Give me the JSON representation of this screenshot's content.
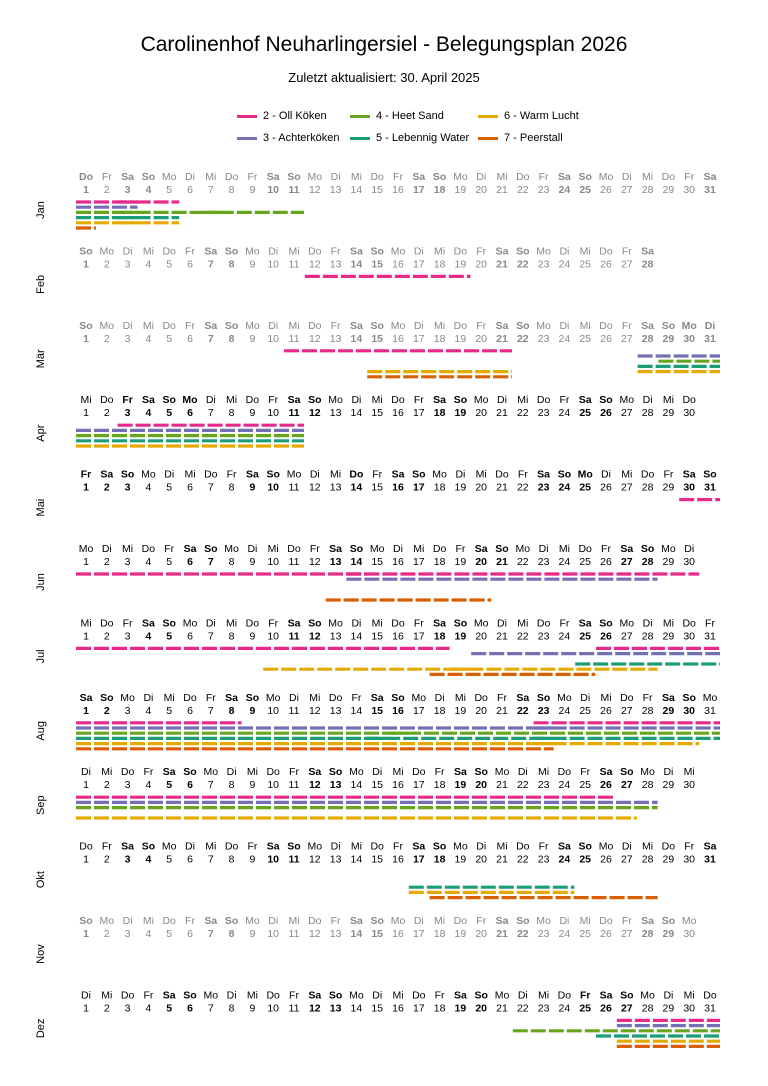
{
  "title": "Carolinenhof Neuharlingersiel - Belegungsplan 2026",
  "subtitle": "Zuletzt aktualisiert: 30. April 2025",
  "legend": [
    {
      "label": "2 - Oll Köken",
      "color": "#e7298a"
    },
    {
      "label": "3 - Achterköken",
      "color": "#7570b3"
    },
    {
      "label": "4 - Heet Sand",
      "color": "#66a61e"
    },
    {
      "label": "5 - Lebennig Water",
      "color": "#1b9e77"
    },
    {
      "label": "6 - Warm Lucht",
      "color": "#e6ab02"
    },
    {
      "label": "7 - Peerstall",
      "color": "#d95f02"
    }
  ],
  "chart_data": {
    "type": "timeline",
    "year": 2026,
    "months": [
      {
        "label": "Jan",
        "days": 31,
        "start_weekday": "Do",
        "bold_days": [
          1,
          3,
          4
        ],
        "faded": true
      },
      {
        "label": "Feb",
        "days": 28,
        "start_weekday": "So",
        "bold_days": [],
        "faded": true
      },
      {
        "label": "Mär",
        "days": 31,
        "start_weekday": "So",
        "bold_days": [
          28,
          29,
          30,
          31
        ],
        "faded": true
      },
      {
        "label": "Apr",
        "days": 30,
        "start_weekday": "Mi",
        "bold_days": [
          3,
          5,
          6
        ],
        "faded": false
      },
      {
        "label": "Mai",
        "days": 31,
        "start_weekday": "Fr",
        "bold_days": [
          1,
          14,
          25
        ],
        "faded": false
      },
      {
        "label": "Jun",
        "days": 30,
        "start_weekday": "Mo",
        "bold_days": [],
        "faded": false
      },
      {
        "label": "Jul",
        "days": 31,
        "start_weekday": "Mi",
        "bold_days": [],
        "faded": false
      },
      {
        "label": "Aug",
        "days": 31,
        "start_weekday": "Sa",
        "bold_days": [],
        "faded": false
      },
      {
        "label": "Sep",
        "days": 30,
        "start_weekday": "Di",
        "bold_days": [],
        "faded": false
      },
      {
        "label": "Okt",
        "days": 31,
        "start_weekday": "Do",
        "bold_days": [],
        "faded": false
      },
      {
        "label": "Nov",
        "days": 30,
        "start_weekday": "So",
        "bold_days": [],
        "faded": true
      },
      {
        "label": "Dez",
        "days": 31,
        "start_weekday": "Di",
        "bold_days": [
          25
        ],
        "faded": false
      }
    ],
    "weekday_names": [
      "Mo",
      "Di",
      "Mi",
      "Do",
      "Fr",
      "Sa",
      "So"
    ],
    "bookings": [
      {
        "month": "Jan",
        "unit": "2 - Oll Köken",
        "from": 1,
        "to": 3
      },
      {
        "month": "Jan",
        "unit": "2 - Oll Köken",
        "from": 3,
        "to": 5
      },
      {
        "month": "Jan",
        "unit": "3 - Achterköken",
        "from": 1,
        "to": 3
      },
      {
        "month": "Jan",
        "unit": "4 - Heet Sand",
        "from": 1,
        "to": 3
      },
      {
        "month": "Jan",
        "unit": "4 - Heet Sand",
        "from": 3,
        "to": 7
      },
      {
        "month": "Jan",
        "unit": "4 - Heet Sand",
        "from": 7,
        "to": 11
      },
      {
        "month": "Jan",
        "unit": "5 - Lebennig Water",
        "from": 1,
        "to": 3
      },
      {
        "month": "Jan",
        "unit": "5 - Lebennig Water",
        "from": 3,
        "to": 5
      },
      {
        "month": "Jan",
        "unit": "6 - Warm Lucht",
        "from": 1,
        "to": 3
      },
      {
        "month": "Jan",
        "unit": "6 - Warm Lucht",
        "from": 3,
        "to": 5
      },
      {
        "month": "Jan",
        "unit": "7 - Peerstall",
        "from": 1,
        "to": 1
      },
      {
        "month": "Feb",
        "unit": "2 - Oll Köken",
        "from": 12,
        "to": 19
      },
      {
        "month": "Mär",
        "unit": "2 - Oll Köken",
        "from": 11,
        "to": 21
      },
      {
        "month": "Mär",
        "unit": "6 - Warm Lucht",
        "from": 15,
        "to": 21
      },
      {
        "month": "Mär",
        "unit": "7 - Peerstall",
        "from": 15,
        "to": 21
      },
      {
        "month": "Mär",
        "unit": "3 - Achterköken",
        "from": 28,
        "to": 31
      },
      {
        "month": "Mär",
        "unit": "4 - Heet Sand",
        "from": 29,
        "to": 31
      },
      {
        "month": "Mär",
        "unit": "5 - Lebennig Water",
        "from": 28,
        "to": 31
      },
      {
        "month": "Mär",
        "unit": "6 - Warm Lucht",
        "from": 28,
        "to": 31
      },
      {
        "month": "Apr",
        "unit": "2 - Oll Köken",
        "from": 3,
        "to": 11
      },
      {
        "month": "Apr",
        "unit": "3 - Achterköken",
        "from": 1,
        "to": 11
      },
      {
        "month": "Apr",
        "unit": "4 - Heet Sand",
        "from": 1,
        "to": 11
      },
      {
        "month": "Apr",
        "unit": "5 - Lebennig Water",
        "from": 1,
        "to": 11
      },
      {
        "month": "Apr",
        "unit": "6 - Warm Lucht",
        "from": 1,
        "to": 11
      },
      {
        "month": "Mai",
        "unit": "2 - Oll Köken",
        "from": 30,
        "to": 31
      },
      {
        "month": "Jun",
        "unit": "2 - Oll Köken",
        "from": 1,
        "to": 14
      },
      {
        "month": "Jun",
        "unit": "2 - Oll Köken",
        "from": 14,
        "to": 30
      },
      {
        "month": "Jun",
        "unit": "3 - Achterköken",
        "from": 14,
        "to": 28
      },
      {
        "month": "Jun",
        "unit": "7 - Peerstall",
        "from": 13,
        "to": 20
      },
      {
        "month": "Jul",
        "unit": "2 - Oll Köken",
        "from": 1,
        "to": 18
      },
      {
        "month": "Jul",
        "unit": "2 - Oll Köken",
        "from": 26,
        "to": 31
      },
      {
        "month": "Jul",
        "unit": "3 - Achterköken",
        "from": 20,
        "to": 31
      },
      {
        "month": "Jul",
        "unit": "5 - Lebennig Water",
        "from": 25,
        "to": 31
      },
      {
        "month": "Jul",
        "unit": "6 - Warm Lucht",
        "from": 10,
        "to": 19
      },
      {
        "month": "Jul",
        "unit": "6 - Warm Lucht",
        "from": 19,
        "to": 28
      },
      {
        "month": "Jul",
        "unit": "7 - Peerstall",
        "from": 18,
        "to": 25
      },
      {
        "month": "Aug",
        "unit": "2 - Oll Köken",
        "from": 1,
        "to": 8
      },
      {
        "month": "Aug",
        "unit": "2 - Oll Köken",
        "from": 23,
        "to": 31
      },
      {
        "month": "Aug",
        "unit": "3 - Achterköken",
        "from": 1,
        "to": 23
      },
      {
        "month": "Aug",
        "unit": "3 - Achterköken",
        "from": 23,
        "to": 31
      },
      {
        "month": "Aug",
        "unit": "4 - Heet Sand",
        "from": 1,
        "to": 16
      },
      {
        "month": "Aug",
        "unit": "4 - Heet Sand",
        "from": 16,
        "to": 31
      },
      {
        "month": "Aug",
        "unit": "5 - Lebennig Water",
        "from": 1,
        "to": 15
      },
      {
        "month": "Aug",
        "unit": "5 - Lebennig Water",
        "from": 15,
        "to": 23
      },
      {
        "month": "Aug",
        "unit": "5 - Lebennig Water",
        "from": 23,
        "to": 31
      },
      {
        "month": "Aug",
        "unit": "6 - Warm Lucht",
        "from": 1,
        "to": 23
      },
      {
        "month": "Aug",
        "unit": "6 - Warm Lucht",
        "from": 23,
        "to": 30
      },
      {
        "month": "Aug",
        "unit": "7 - Peerstall",
        "from": 1,
        "to": 23
      },
      {
        "month": "Sep",
        "unit": "2 - Oll Köken",
        "from": 1,
        "to": 26
      },
      {
        "month": "Sep",
        "unit": "3 - Achterköken",
        "from": 1,
        "to": 28
      },
      {
        "month": "Sep",
        "unit": "4 - Heet Sand",
        "from": 1,
        "to": 28
      },
      {
        "month": "Sep",
        "unit": "6 - Warm Lucht",
        "from": 1,
        "to": 27
      },
      {
        "month": "Okt",
        "unit": "5 - Lebennig Water",
        "from": 17,
        "to": 24
      },
      {
        "month": "Okt",
        "unit": "6 - Warm Lucht",
        "from": 17,
        "to": 24
      },
      {
        "month": "Okt",
        "unit": "7 - Peerstall",
        "from": 18,
        "to": 28
      },
      {
        "month": "Dez",
        "unit": "2 - Oll Köken",
        "from": 27,
        "to": 31
      },
      {
        "month": "Dez",
        "unit": "3 - Achterköken",
        "from": 27,
        "to": 31
      },
      {
        "month": "Dez",
        "unit": "4 - Heet Sand",
        "from": 22,
        "to": 31
      },
      {
        "month": "Dez",
        "unit": "5 - Lebennig Water",
        "from": 26,
        "to": 31
      },
      {
        "month": "Dez",
        "unit": "6 - Warm Lucht",
        "from": 27,
        "to": 31
      },
      {
        "month": "Dez",
        "unit": "7 - Peerstall",
        "from": 27,
        "to": 31
      }
    ]
  }
}
